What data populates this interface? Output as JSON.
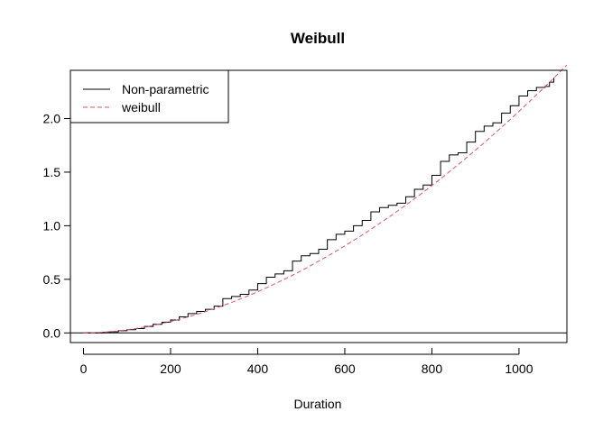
{
  "chart_data": {
    "type": "line",
    "title": "Weibull",
    "xlabel": "Duration",
    "ylabel": "",
    "xlim": [
      -30,
      1110
    ],
    "ylim": [
      -0.09,
      2.45
    ],
    "xticks": [
      0,
      200,
      400,
      600,
      800,
      1000
    ],
    "xtick_labels": [
      "0",
      "200",
      "400",
      "600",
      "800",
      "1000"
    ],
    "yticks": [
      0.0,
      0.5,
      1.0,
      1.5,
      2.0
    ],
    "ytick_labels": [
      "0.0",
      "0.5",
      "1.0",
      "1.5",
      "2.0"
    ],
    "grid": false,
    "legend_position": "top-left",
    "reference_line": {
      "y": 0
    },
    "series": [
      {
        "name": "Non-parametric",
        "style": "step",
        "color": "#000000",
        "dash": "solid",
        "x": [
          0,
          20,
          45,
          60,
          80,
          100,
          120,
          140,
          160,
          180,
          200,
          220,
          240,
          260,
          280,
          300,
          320,
          340,
          360,
          380,
          400,
          420,
          440,
          460,
          480,
          500,
          520,
          540,
          560,
          580,
          600,
          620,
          640,
          660,
          680,
          700,
          720,
          740,
          760,
          780,
          800,
          820,
          840,
          860,
          880,
          900,
          920,
          940,
          960,
          980,
          1000,
          1020,
          1040,
          1060,
          1070,
          1080
        ],
        "y": [
          0.0,
          0.0,
          0.005,
          0.01,
          0.02,
          0.03,
          0.04,
          0.06,
          0.08,
          0.1,
          0.12,
          0.15,
          0.18,
          0.2,
          0.22,
          0.25,
          0.32,
          0.34,
          0.36,
          0.4,
          0.46,
          0.52,
          0.55,
          0.58,
          0.67,
          0.72,
          0.74,
          0.78,
          0.87,
          0.92,
          0.95,
          1.0,
          1.05,
          1.13,
          1.17,
          1.19,
          1.21,
          1.27,
          1.34,
          1.38,
          1.47,
          1.6,
          1.66,
          1.68,
          1.78,
          1.88,
          1.93,
          1.96,
          2.05,
          2.12,
          2.21,
          2.26,
          2.29,
          2.3,
          2.34,
          2.38
        ]
      },
      {
        "name": "weibull",
        "style": "line",
        "color": "#DF536B",
        "dash": "dashed",
        "x": [
          0,
          25,
          50,
          75,
          100,
          125,
          150,
          175,
          200,
          225,
          250,
          275,
          300,
          325,
          350,
          375,
          400,
          425,
          450,
          475,
          500,
          525,
          550,
          575,
          600,
          625,
          650,
          675,
          700,
          725,
          750,
          775,
          800,
          825,
          850,
          875,
          900,
          925,
          950,
          975,
          1000,
          1025,
          1050,
          1075,
          1100,
          1110
        ],
        "y": [
          0.0,
          0.002,
          0.008,
          0.017,
          0.029,
          0.044,
          0.062,
          0.083,
          0.106,
          0.132,
          0.161,
          0.192,
          0.226,
          0.262,
          0.3,
          0.341,
          0.384,
          0.43,
          0.478,
          0.528,
          0.58,
          0.635,
          0.692,
          0.751,
          0.812,
          0.875,
          0.94,
          1.008,
          1.077,
          1.148,
          1.222,
          1.297,
          1.375,
          1.454,
          1.536,
          1.619,
          1.705,
          1.792,
          1.882,
          1.973,
          2.067,
          2.162,
          2.259,
          2.358,
          2.46,
          2.5
        ]
      }
    ]
  }
}
